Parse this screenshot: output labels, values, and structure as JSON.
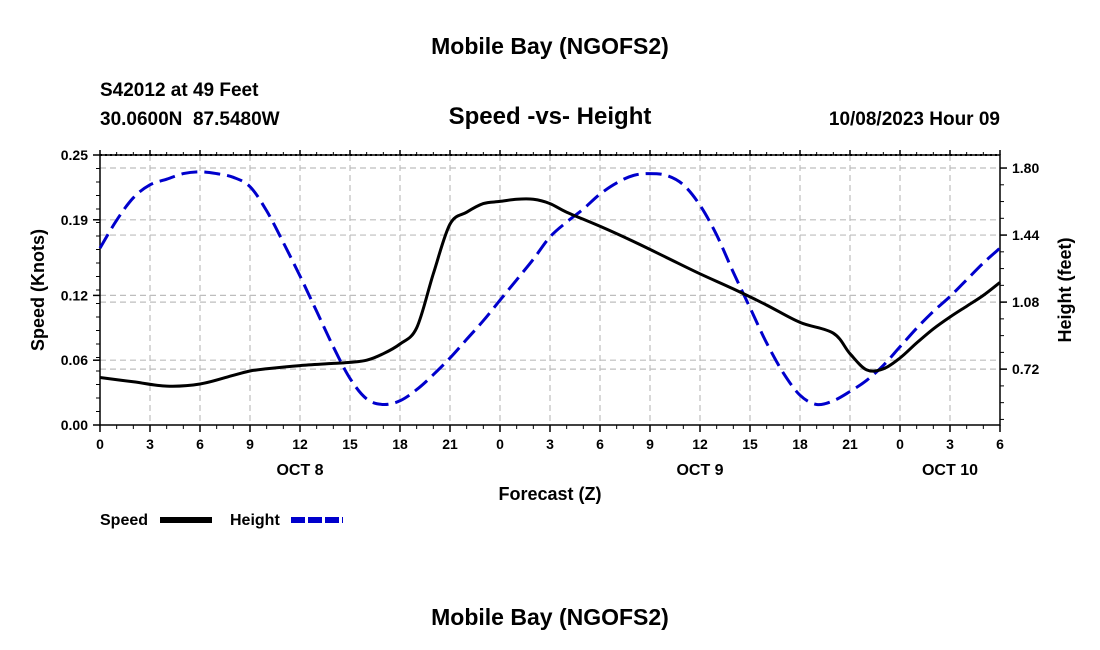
{
  "chart_data": {
    "type": "line",
    "title": "Mobile Bay (NGOFS2)",
    "footer_title": "Mobile Bay (NGOFS2)",
    "subtitle": "Speed -vs- Height",
    "station": "S42012 at 49 Feet",
    "coords": "30.0600N  87.5480W",
    "timestamp": "10/08/2023 Hour 09",
    "xlabel": "Forecast (Z)",
    "ylabel_left": "Speed (Knots)",
    "ylabel_right": "Height (feet)",
    "x_tick_labels": [
      "0",
      "3",
      "6",
      "9",
      "12",
      "15",
      "18",
      "21",
      "0",
      "3",
      "6",
      "9",
      "12",
      "15",
      "18",
      "21",
      "0",
      "3",
      "6"
    ],
    "x_range_hours": [
      0,
      54
    ],
    "date_labels": [
      {
        "label": "OCT 8",
        "hour": 12
      },
      {
        "label": "OCT 9",
        "hour": 36
      },
      {
        "label": "OCT 10",
        "hour": 51
      }
    ],
    "ylim_left": [
      0,
      0.25
    ],
    "yticks_left": [
      "0.00",
      "0.06",
      "0.12",
      "0.19",
      "0.25"
    ],
    "ylim_right": [
      0.42,
      1.87
    ],
    "yticks_right": [
      "0.72",
      "1.08",
      "1.44",
      "1.80"
    ],
    "series": [
      {
        "name": "Speed",
        "axis": "left",
        "color": "#000000",
        "style": "solid",
        "x": [
          0,
          2,
          4,
          6,
          8,
          9,
          10,
          12,
          14,
          15,
          16,
          17,
          18,
          19,
          20,
          21,
          22,
          23,
          24,
          25,
          26,
          27,
          28,
          30,
          32,
          34,
          36,
          38,
          40,
          42,
          44,
          45,
          46,
          47,
          48,
          49,
          50,
          51,
          52,
          53,
          54
        ],
        "values": [
          0.044,
          0.04,
          0.036,
          0.038,
          0.046,
          0.05,
          0.052,
          0.055,
          0.057,
          0.058,
          0.06,
          0.066,
          0.075,
          0.09,
          0.14,
          0.186,
          0.197,
          0.205,
          0.207,
          0.209,
          0.209,
          0.205,
          0.197,
          0.184,
          0.17,
          0.155,
          0.14,
          0.126,
          0.111,
          0.095,
          0.085,
          0.066,
          0.051,
          0.052,
          0.062,
          0.076,
          0.089,
          0.1,
          0.11,
          0.12,
          0.132
        ]
      },
      {
        "name": "Height",
        "axis": "right",
        "color": "#0000cc",
        "style": "dashed",
        "x": [
          0,
          1,
          2,
          3,
          4,
          5,
          6,
          7,
          8,
          9,
          10,
          11,
          12,
          13,
          14,
          15,
          16,
          17,
          18,
          19,
          20,
          21,
          22,
          23,
          24,
          25,
          26,
          27,
          28,
          29,
          30,
          31,
          32,
          33,
          34,
          35,
          36,
          37,
          38,
          39,
          40,
          41,
          42,
          43,
          44,
          45,
          46,
          47,
          48,
          49,
          50,
          51,
          52,
          53,
          54
        ],
        "values": [
          1.37,
          1.52,
          1.64,
          1.71,
          1.74,
          1.77,
          1.78,
          1.77,
          1.75,
          1.7,
          1.57,
          1.4,
          1.22,
          1.03,
          0.84,
          0.67,
          0.56,
          0.53,
          0.55,
          0.61,
          0.69,
          0.78,
          0.88,
          0.98,
          1.09,
          1.2,
          1.31,
          1.43,
          1.51,
          1.58,
          1.66,
          1.72,
          1.76,
          1.77,
          1.76,
          1.71,
          1.6,
          1.44,
          1.24,
          1.05,
          0.86,
          0.7,
          0.58,
          0.53,
          0.55,
          0.6,
          0.66,
          0.74,
          0.84,
          0.94,
          1.03,
          1.11,
          1.2,
          1.29,
          1.37
        ]
      }
    ],
    "legend": [
      {
        "label": "Speed"
      },
      {
        "label": "Height"
      }
    ]
  }
}
